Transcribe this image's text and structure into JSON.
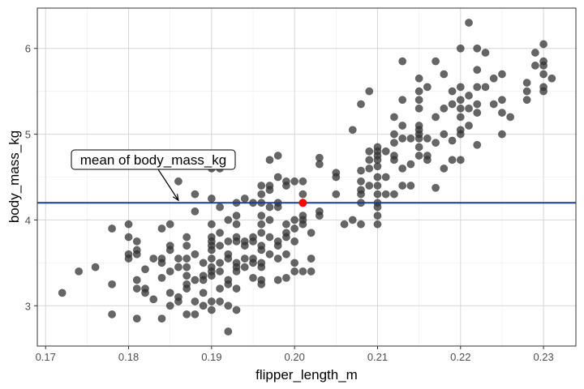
{
  "chart_data": {
    "type": "scatter",
    "title": "",
    "xlabel": "flipper_length_m",
    "ylabel": "body_mass_kg",
    "xlim": [
      0.169,
      0.2339
    ],
    "ylim": [
      2.53,
      6.47
    ],
    "x_ticks": [
      0.17,
      0.18,
      0.19,
      0.2,
      0.21,
      0.22,
      0.23
    ],
    "x_tick_labels": [
      "0.17",
      "0.18",
      "0.19",
      "0.20",
      "0.21",
      "0.22",
      "0.23"
    ],
    "y_ticks": [
      3,
      4,
      5,
      6
    ],
    "y_tick_labels": [
      "3",
      "4",
      "5",
      "6"
    ],
    "grid": true,
    "point_color": "#333333",
    "highlight_color": "#ff0000",
    "mean_line": {
      "y": 4.2,
      "color": "#1f3a93"
    },
    "highlight_point": {
      "x": 0.201,
      "y": 4.2
    },
    "annotation": {
      "text": "mean of body_mass_kg",
      "arrow_to": {
        "x": 0.186,
        "y": 4.2
      }
    },
    "columns": [
      {
        "x": 0.172,
        "y": [
          3.15
        ]
      },
      {
        "x": 0.174,
        "y": [
          3.4
        ]
      },
      {
        "x": 0.176,
        "y": [
          3.45
        ]
      },
      {
        "x": 0.178,
        "y": [
          3.9,
          3.25,
          2.9
        ]
      },
      {
        "x": 0.18,
        "y": [
          3.95,
          3.8,
          3.6,
          3.55
        ]
      },
      {
        "x": 0.181,
        "y": [
          3.75,
          3.65,
          3.6,
          3.3,
          3.2,
          2.85
        ]
      },
      {
        "x": 0.182,
        "y": [
          3.425,
          3.2,
          3.15
        ]
      },
      {
        "x": 0.183,
        "y": [
          3.55,
          3.075
        ]
      },
      {
        "x": 0.184,
        "y": [
          3.9,
          3.55,
          3.5,
          3.325,
          2.85
        ]
      },
      {
        "x": 0.185,
        "y": [
          3.95,
          3.7,
          3.65,
          3.4,
          3.15,
          3.0
        ]
      },
      {
        "x": 0.186,
        "y": [
          4.45,
          3.55,
          3.45,
          3.1,
          3.05
        ]
      },
      {
        "x": 0.187,
        "y": [
          3.8,
          3.7,
          3.55,
          3.45,
          3.35,
          3.25,
          3.2,
          2.9
        ]
      },
      {
        "x": 0.188,
        "y": [
          4.3,
          4.1,
          3.6,
          3.3,
          3.05,
          2.9
        ]
      },
      {
        "x": 0.189,
        "y": [
          3.5,
          3.35,
          3.3,
          3.15,
          3.0
        ]
      },
      {
        "x": 0.19,
        "y": [
          4.6,
          4.25,
          3.95,
          3.8,
          3.75,
          3.7,
          3.65,
          3.55,
          3.45,
          3.4,
          3.35,
          3.05,
          2.95
        ]
      },
      {
        "x": 0.191,
        "y": [
          4.6,
          4.15,
          3.85,
          3.7,
          3.5,
          3.4,
          3.2,
          3.05
        ]
      },
      {
        "x": 0.192,
        "y": [
          4.0,
          3.75,
          3.6,
          3.55,
          3.3,
          3.25,
          3.0,
          2.7
        ]
      },
      {
        "x": 0.193,
        "y": [
          4.2,
          4.05,
          3.95,
          3.8,
          3.75,
          3.5,
          3.45,
          3.4,
          3.2,
          2.95
        ]
      },
      {
        "x": 0.194,
        "y": [
          4.25,
          3.75,
          3.7,
          3.55,
          3.45
        ]
      },
      {
        "x": 0.195,
        "y": [
          4.2,
          3.8,
          3.75,
          3.55,
          3.5,
          3.325
        ]
      },
      {
        "x": 0.196,
        "y": [
          4.4,
          4.3,
          4.2,
          4.05,
          3.95,
          3.85,
          3.7,
          3.65,
          3.5,
          3.45,
          3.3,
          3.25
        ]
      },
      {
        "x": 0.197,
        "y": [
          4.7,
          4.4,
          4.35,
          4.15,
          4.0,
          3.8,
          3.6
        ]
      },
      {
        "x": 0.198,
        "y": [
          4.75,
          4.5,
          4.2,
          4.15,
          3.75,
          3.7,
          3.55,
          3.3
        ]
      },
      {
        "x": 0.199,
        "y": [
          4.45,
          4.4,
          3.95,
          3.85,
          3.8,
          3.6,
          3.325
        ]
      },
      {
        "x": 0.2,
        "y": [
          4.45,
          4.0,
          3.9,
          3.75,
          3.5,
          3.4
        ]
      },
      {
        "x": 0.201,
        "y": [
          4.45,
          4.3,
          4.05,
          4.0,
          3.95,
          3.4
        ]
      },
      {
        "x": 0.202,
        "y": [
          3.85,
          3.55,
          3.4
        ]
      },
      {
        "x": 0.203,
        "y": [
          4.725,
          4.65,
          4.1,
          4.05
        ]
      },
      {
        "x": 0.205,
        "y": [
          4.55,
          4.5,
          4.3
        ]
      },
      {
        "x": 0.206,
        "y": [
          3.95
        ]
      },
      {
        "x": 0.207,
        "y": [
          5.05,
          4.0
        ]
      },
      {
        "x": 0.208,
        "y": [
          5.35,
          4.575,
          4.45,
          4.35,
          4.3,
          4.2,
          3.95
        ]
      },
      {
        "x": 0.209,
        "y": [
          5.5,
          4.8,
          4.7,
          4.6,
          4.4
        ]
      },
      {
        "x": 0.21,
        "y": [
          4.85,
          4.8,
          4.75,
          4.7,
          4.625,
          4.5,
          4.4,
          4.3,
          4.2,
          4.15,
          4.05,
          3.95
        ]
      },
      {
        "x": 0.211,
        "y": [
          4.8,
          4.5,
          4.3
        ]
      },
      {
        "x": 0.212,
        "y": [
          5.2,
          5.0,
          4.9,
          4.75,
          4.7,
          4.3
        ]
      },
      {
        "x": 0.213,
        "y": [
          5.85,
          5.4,
          5.1,
          4.95,
          4.6,
          4.4
        ]
      },
      {
        "x": 0.214,
        "y": [
          4.95,
          4.65,
          4.4
        ]
      },
      {
        "x": 0.215,
        "y": [
          5.65,
          5.5,
          5.4,
          5.3,
          5.1,
          5.05,
          5.0,
          4.95,
          4.85,
          4.75
        ]
      },
      {
        "x": 0.216,
        "y": [
          5.55,
          4.95,
          4.75,
          4.7
        ]
      },
      {
        "x": 0.217,
        "y": [
          5.85,
          5.2,
          4.9,
          4.375
        ]
      },
      {
        "x": 0.218,
        "y": [
          5.7,
          5.3,
          5.0,
          4.6
        ]
      },
      {
        "x": 0.219,
        "y": [
          5.5,
          5.35,
          4.925,
          4.7
        ]
      },
      {
        "x": 0.22,
        "y": [
          6.0,
          5.55,
          5.4,
          5.3,
          5.2,
          5.05,
          5.0,
          4.7
        ]
      },
      {
        "x": 0.221,
        "y": [
          6.3,
          5.45,
          5.3,
          5.1
        ]
      },
      {
        "x": 0.222,
        "y": [
          6.0,
          5.75,
          5.55,
          5.35,
          5.25,
          4.875
        ]
      },
      {
        "x": 0.223,
        "y": [
          5.95,
          5.55
        ]
      },
      {
        "x": 0.224,
        "y": [
          5.65,
          5.35
        ]
      },
      {
        "x": 0.225,
        "y": [
          5.7,
          5.4,
          5.25,
          5.0
        ]
      },
      {
        "x": 0.226,
        "y": [
          5.2
        ]
      },
      {
        "x": 0.228,
        "y": [
          5.6,
          5.5,
          5.4
        ]
      },
      {
        "x": 0.229,
        "y": [
          5.95,
          5.8
        ]
      },
      {
        "x": 0.23,
        "y": [
          6.05,
          5.85,
          5.8,
          5.7,
          5.55,
          5.5
        ]
      },
      {
        "x": 0.231,
        "y": [
          5.65
        ]
      }
    ]
  }
}
